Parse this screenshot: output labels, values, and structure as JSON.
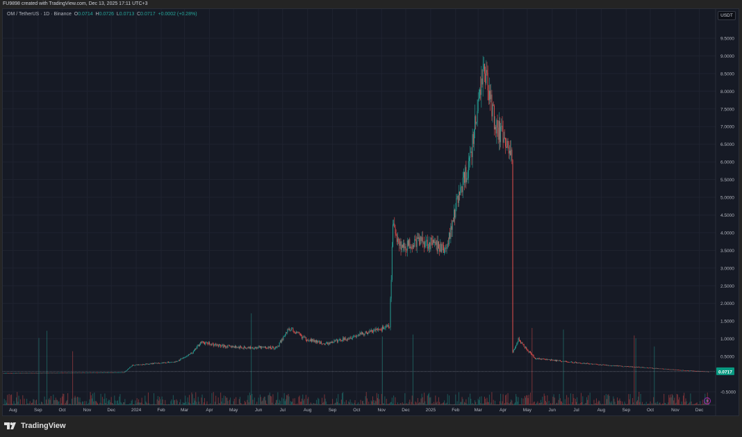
{
  "header": {
    "caption": "FU9898 created with TradingView.com, Dec 13, 2025 17:11 UTC+3"
  },
  "legend": {
    "symbol": "OM / TetherUS · 1D · Binance",
    "o_label": "O",
    "o": "0.0714",
    "h_label": "H",
    "h": "0.0726",
    "l_label": "L",
    "l": "0.0713",
    "c_label": "C",
    "c": "0.0717",
    "change": "+0.0002 (+0.28%)"
  },
  "currency_button": "USDT",
  "footer": {
    "logo_text": "TradingView"
  },
  "colors": {
    "up": "#26a69a",
    "down": "#ef5350",
    "background": "#161a25"
  },
  "chart_data": {
    "type": "candlestick",
    "symbol": "OMUSDT",
    "interval": "1D",
    "ylim": [
      -0.6,
      9.7
    ],
    "y_ticks": [
      "9.5000",
      "9.0000",
      "8.5000",
      "8.0000",
      "7.5000",
      "7.0000",
      "6.5000",
      "6.0000",
      "5.5000",
      "5.0000",
      "4.5000",
      "4.0000",
      "3.5000",
      "3.0000",
      "2.5000",
      "2.0000",
      "1.5000",
      "1.0000",
      "0.5000",
      "-0.5000"
    ],
    "x_ticks": [
      "Aug",
      "Sep",
      "Oct",
      "Nov",
      "Dec",
      "2024",
      "Feb",
      "Mar",
      "Apr",
      "May",
      "Jun",
      "Jul",
      "Aug",
      "Sep",
      "Oct",
      "Nov",
      "Dec",
      "2025",
      "Feb",
      "Mar",
      "Apr",
      "May",
      "Jun",
      "Jul",
      "Aug",
      "Sep",
      "Oct",
      "Nov",
      "Dec"
    ],
    "x_tick_days": [
      12,
      43,
      73,
      104,
      134,
      165,
      196,
      225,
      256,
      286,
      317,
      347,
      378,
      409,
      439,
      470,
      500,
      531,
      562,
      590,
      621,
      651,
      682,
      712,
      743,
      774,
      804,
      835,
      865
    ],
    "total_days": 877,
    "last_price": "0.0717",
    "price_path": [
      [
        0,
        0.03
      ],
      [
        120,
        0.04
      ],
      [
        150,
        0.05
      ],
      [
        160,
        0.25
      ],
      [
        185,
        0.3
      ],
      [
        215,
        0.35
      ],
      [
        235,
        0.6
      ],
      [
        245,
        0.9
      ],
      [
        270,
        0.8
      ],
      [
        300,
        0.75
      ],
      [
        340,
        0.75
      ],
      [
        355,
        1.3
      ],
      [
        375,
        1.0
      ],
      [
        400,
        0.85
      ],
      [
        440,
        1.1
      ],
      [
        480,
        1.35
      ],
      [
        484,
        4.2
      ],
      [
        495,
        3.6
      ],
      [
        520,
        3.8
      ],
      [
        550,
        3.5
      ],
      [
        565,
        5.0
      ],
      [
        580,
        6.0
      ],
      [
        592,
        8.0
      ],
      [
        598,
        8.7
      ],
      [
        610,
        7.2
      ],
      [
        625,
        6.4
      ],
      [
        632,
        6.3
      ],
      [
        633,
        0.6
      ],
      [
        640,
        1.0
      ],
      [
        660,
        0.45
      ],
      [
        700,
        0.35
      ],
      [
        750,
        0.25
      ],
      [
        800,
        0.18
      ],
      [
        850,
        0.1
      ],
      [
        877,
        0.07
      ]
    ]
  }
}
